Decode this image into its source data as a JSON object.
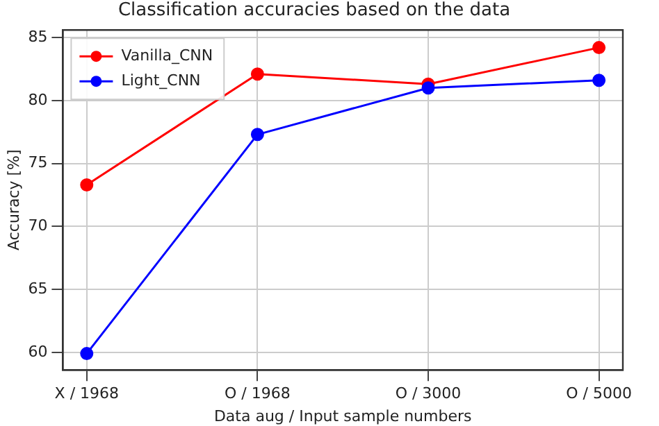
{
  "chart_data": {
    "type": "line",
    "title": "Classification accuracies based on the data",
    "xlabel": "Data aug / Input sample numbers",
    "ylabel": "Accuracy [%]",
    "categories": [
      "X / 1968",
      "O / 1968",
      "O / 3000",
      "O / 5000"
    ],
    "series": [
      {
        "name": "Vanilla_CNN",
        "color": "#ff0000",
        "values": [
          73.3,
          82.1,
          81.3,
          84.2
        ]
      },
      {
        "name": "Light_CNN",
        "color": "#0000ff",
        "values": [
          59.9,
          77.3,
          81.0,
          81.6
        ]
      }
    ],
    "ylim": [
      58.6,
      85.6
    ],
    "yticks": [
      60,
      65,
      70,
      75,
      80,
      85
    ],
    "grid": true,
    "legend": "top left",
    "marker": "circle",
    "line_style": "solid"
  }
}
